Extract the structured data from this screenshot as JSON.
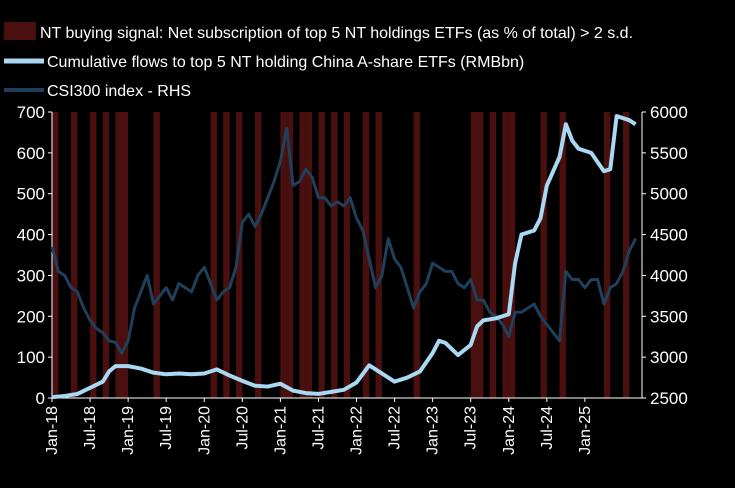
{
  "chart_data": {
    "type": "line",
    "legend": [
      {
        "label": "NT buying signal: Net subscription of top 5 NT holdings ETFs (as % of total) > 2 s.d.",
        "kind": "bar",
        "color": "#4a1010"
      },
      {
        "label": "Cumulative flows to top 5 NT holding China A-share ETFs (RMBbn)",
        "kind": "line",
        "color": "#a9d8f2"
      },
      {
        "label": "CSI300 index - RHS",
        "kind": "line",
        "color": "#1f3f5a"
      }
    ],
    "x_ticks": [
      "Jan-18",
      "Jul-18",
      "Jan-19",
      "Jul-19",
      "Jan-20",
      "Jul-20",
      "Jan-21",
      "Jul-21",
      "Jan-22",
      "Jul-22",
      "Jan-23",
      "Jul-23",
      "Jan-24",
      "Jul-24",
      "Jan-25"
    ],
    "x_tick_dates": [
      "2018-01",
      "2018-07",
      "2019-01",
      "2019-07",
      "2020-01",
      "2020-07",
      "2021-01",
      "2021-07",
      "2022-01",
      "2022-07",
      "2023-01",
      "2023-07",
      "2024-01",
      "2024-07",
      "2025-01"
    ],
    "x_range": [
      "2018-01",
      "2025-10"
    ],
    "y_left": {
      "ticks": [
        "0",
        "100",
        "200",
        "300",
        "400",
        "500",
        "600",
        "700"
      ],
      "lim": [
        0,
        700
      ]
    },
    "y_right": {
      "ticks": [
        "2500",
        "3000",
        "3500",
        "4000",
        "4500",
        "5000",
        "5500",
        "6000"
      ],
      "lim": [
        2500,
        6000
      ]
    },
    "signal_periods": [
      [
        "2018-01",
        "2018-02"
      ],
      [
        "2018-04",
        "2018-05"
      ],
      [
        "2018-07",
        "2018-08"
      ],
      [
        "2018-09",
        "2018-10"
      ],
      [
        "2018-11",
        "2019-01"
      ],
      [
        "2019-05",
        "2019-06"
      ],
      [
        "2020-02",
        "2020-03"
      ],
      [
        "2020-04",
        "2020-05"
      ],
      [
        "2020-06",
        "2020-07"
      ],
      [
        "2020-09",
        "2020-10"
      ],
      [
        "2021-01",
        "2021-02"
      ],
      [
        "2021-02",
        "2021-03"
      ],
      [
        "2021-04",
        "2021-05"
      ],
      [
        "2021-05",
        "2021-06"
      ],
      [
        "2021-07",
        "2021-08"
      ],
      [
        "2021-09",
        "2021-10"
      ],
      [
        "2021-11",
        "2021-12"
      ],
      [
        "2022-02",
        "2022-03"
      ],
      [
        "2022-04",
        "2022-05"
      ],
      [
        "2022-10",
        "2022-11"
      ],
      [
        "2023-07",
        "2023-08"
      ],
      [
        "2023-08",
        "2023-09"
      ],
      [
        "2023-10",
        "2023-11"
      ],
      [
        "2023-12",
        "2024-01"
      ],
      [
        "2024-01",
        "2024-02"
      ],
      [
        "2024-06",
        "2024-07"
      ],
      [
        "2024-09",
        "2024-10"
      ],
      [
        "2025-04",
        "2025-05"
      ],
      [
        "2025-07",
        "2025-08"
      ]
    ],
    "series": [
      {
        "name": "Cumulative flows to top 5 NT holding China A-share ETFs (RMBbn)",
        "axis": "left",
        "points": [
          [
            "2018-01",
            2
          ],
          [
            "2018-03",
            5
          ],
          [
            "2018-05",
            10
          ],
          [
            "2018-07",
            25
          ],
          [
            "2018-09",
            40
          ],
          [
            "2018-10",
            65
          ],
          [
            "2018-11",
            78
          ],
          [
            "2019-01",
            78
          ],
          [
            "2019-03",
            72
          ],
          [
            "2019-05",
            62
          ],
          [
            "2019-07",
            58
          ],
          [
            "2019-09",
            60
          ],
          [
            "2019-11",
            58
          ],
          [
            "2020-01",
            60
          ],
          [
            "2020-03",
            70
          ],
          [
            "2020-05",
            55
          ],
          [
            "2020-07",
            42
          ],
          [
            "2020-09",
            30
          ],
          [
            "2020-11",
            28
          ],
          [
            "2021-01",
            35
          ],
          [
            "2021-03",
            18
          ],
          [
            "2021-05",
            12
          ],
          [
            "2021-07",
            10
          ],
          [
            "2021-09",
            15
          ],
          [
            "2021-11",
            20
          ],
          [
            "2022-01",
            38
          ],
          [
            "2022-03",
            80
          ],
          [
            "2022-05",
            60
          ],
          [
            "2022-07",
            40
          ],
          [
            "2022-09",
            50
          ],
          [
            "2022-11",
            65
          ],
          [
            "2023-01",
            110
          ],
          [
            "2023-02",
            140
          ],
          [
            "2023-03",
            135
          ],
          [
            "2023-05",
            105
          ],
          [
            "2023-07",
            130
          ],
          [
            "2023-08",
            175
          ],
          [
            "2023-09",
            190
          ],
          [
            "2023-11",
            195
          ],
          [
            "2024-01",
            205
          ],
          [
            "2024-02",
            330
          ],
          [
            "2024-03",
            400
          ],
          [
            "2024-04",
            405
          ],
          [
            "2024-05",
            410
          ],
          [
            "2024-06",
            440
          ],
          [
            "2024-07",
            520
          ],
          [
            "2024-09",
            590
          ],
          [
            "2024-10",
            670
          ],
          [
            "2024-11",
            630
          ],
          [
            "2024-12",
            610
          ],
          [
            "2025-02",
            600
          ],
          [
            "2025-04",
            555
          ],
          [
            "2025-05",
            560
          ],
          [
            "2025-06",
            690
          ],
          [
            "2025-08",
            680
          ],
          [
            "2025-09",
            670
          ]
        ]
      },
      {
        "name": "CSI300 index - RHS",
        "axis": "right",
        "points": [
          [
            "2018-01",
            4350
          ],
          [
            "2018-02",
            4050
          ],
          [
            "2018-03",
            4000
          ],
          [
            "2018-04",
            3850
          ],
          [
            "2018-05",
            3800
          ],
          [
            "2018-06",
            3600
          ],
          [
            "2018-07",
            3450
          ],
          [
            "2018-08",
            3350
          ],
          [
            "2018-09",
            3300
          ],
          [
            "2018-10",
            3200
          ],
          [
            "2018-11",
            3180
          ],
          [
            "2018-12",
            3050
          ],
          [
            "2019-01",
            3200
          ],
          [
            "2019-02",
            3600
          ],
          [
            "2019-03",
            3800
          ],
          [
            "2019-04",
            4000
          ],
          [
            "2019-05",
            3650
          ],
          [
            "2019-06",
            3750
          ],
          [
            "2019-07",
            3850
          ],
          [
            "2019-08",
            3700
          ],
          [
            "2019-09",
            3900
          ],
          [
            "2019-10",
            3850
          ],
          [
            "2019-11",
            3800
          ],
          [
            "2019-12",
            4000
          ],
          [
            "2020-01",
            4100
          ],
          [
            "2020-02",
            3900
          ],
          [
            "2020-03",
            3700
          ],
          [
            "2020-04",
            3800
          ],
          [
            "2020-05",
            3850
          ],
          [
            "2020-06",
            4100
          ],
          [
            "2020-07",
            4650
          ],
          [
            "2020-08",
            4750
          ],
          [
            "2020-09",
            4600
          ],
          [
            "2020-10",
            4750
          ],
          [
            "2020-11",
            4950
          ],
          [
            "2020-12",
            5150
          ],
          [
            "2021-01",
            5400
          ],
          [
            "2021-02",
            5800
          ],
          [
            "2021-03",
            5100
          ],
          [
            "2021-04",
            5150
          ],
          [
            "2021-05",
            5300
          ],
          [
            "2021-06",
            5200
          ],
          [
            "2021-07",
            4950
          ],
          [
            "2021-08",
            4950
          ],
          [
            "2021-09",
            4850
          ],
          [
            "2021-10",
            4900
          ],
          [
            "2021-11",
            4850
          ],
          [
            "2021-12",
            4950
          ],
          [
            "2022-01",
            4700
          ],
          [
            "2022-02",
            4550
          ],
          [
            "2022-03",
            4200
          ],
          [
            "2022-04",
            3850
          ],
          [
            "2022-05",
            4000
          ],
          [
            "2022-06",
            4450
          ],
          [
            "2022-07",
            4200
          ],
          [
            "2022-08",
            4100
          ],
          [
            "2022-09",
            3850
          ],
          [
            "2022-10",
            3600
          ],
          [
            "2022-11",
            3800
          ],
          [
            "2022-12",
            3900
          ],
          [
            "2023-01",
            4150
          ],
          [
            "2023-02",
            4100
          ],
          [
            "2023-03",
            4050
          ],
          [
            "2023-04",
            4050
          ],
          [
            "2023-05",
            3900
          ],
          [
            "2023-06",
            3850
          ],
          [
            "2023-07",
            3950
          ],
          [
            "2023-08",
            3700
          ],
          [
            "2023-09",
            3700
          ],
          [
            "2023-10",
            3550
          ],
          [
            "2023-11",
            3500
          ],
          [
            "2023-12",
            3400
          ],
          [
            "2024-01",
            3250
          ],
          [
            "2024-02",
            3550
          ],
          [
            "2024-03",
            3550
          ],
          [
            "2024-04",
            3600
          ],
          [
            "2024-05",
            3650
          ],
          [
            "2024-06",
            3500
          ],
          [
            "2024-07",
            3400
          ],
          [
            "2024-08",
            3300
          ],
          [
            "2024-09",
            3200
          ],
          [
            "2024-10",
            4050
          ],
          [
            "2024-11",
            3950
          ],
          [
            "2024-12",
            3950
          ],
          [
            "2025-01",
            3850
          ],
          [
            "2025-02",
            3950
          ],
          [
            "2025-03",
            3950
          ],
          [
            "2025-04",
            3650
          ],
          [
            "2025-05",
            3850
          ],
          [
            "2025-06",
            3900
          ],
          [
            "2025-07",
            4050
          ],
          [
            "2025-08",
            4300
          ],
          [
            "2025-09",
            4450
          ]
        ]
      }
    ]
  }
}
